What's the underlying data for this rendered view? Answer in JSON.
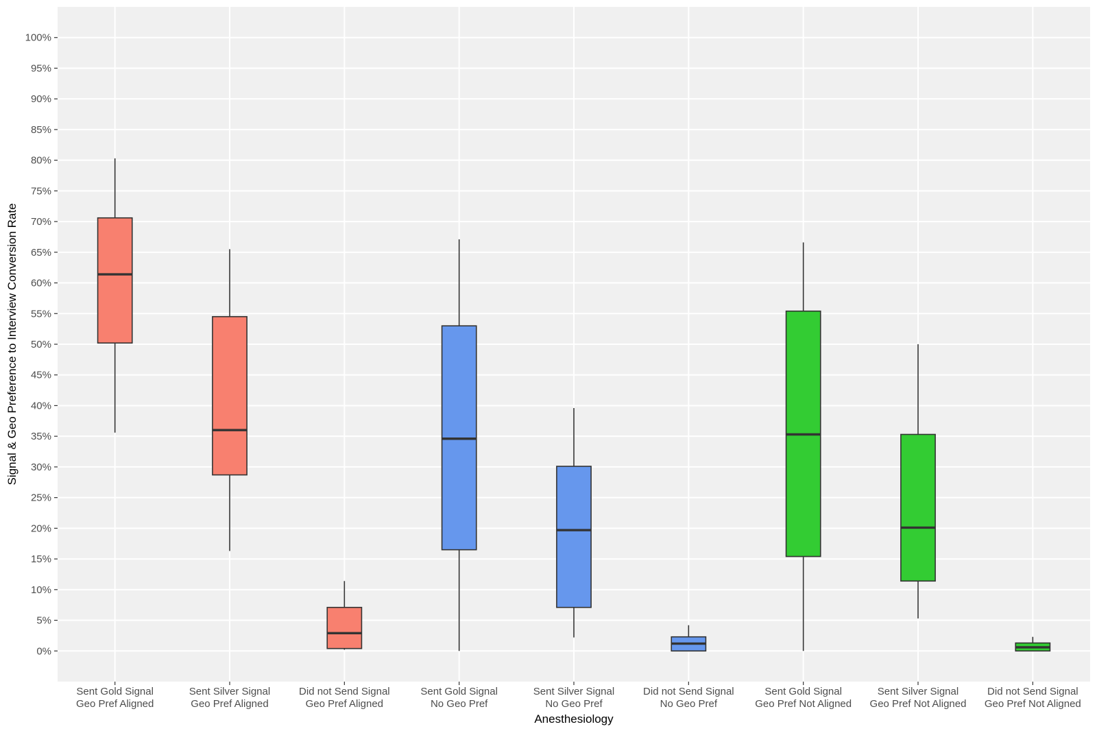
{
  "chart_data": {
    "type": "boxplot",
    "title": "",
    "xlabel": "Anesthesiology",
    "ylabel": "Signal & Geo Preference to Interview Conversion Rate",
    "ylim": [
      -0.05,
      1.05
    ],
    "y_ticks": [
      0,
      0.05,
      0.1,
      0.15,
      0.2,
      0.25,
      0.3,
      0.35,
      0.4,
      0.45,
      0.5,
      0.55,
      0.6,
      0.65,
      0.7,
      0.75,
      0.8,
      0.85,
      0.9,
      0.95,
      1.0
    ],
    "y_tick_labels": [
      "0%",
      "5%",
      "10%",
      "15%",
      "20%",
      "25%",
      "30%",
      "35%",
      "40%",
      "45%",
      "50%",
      "55%",
      "60%",
      "65%",
      "70%",
      "75%",
      "80%",
      "85%",
      "90%",
      "95%",
      "100%"
    ],
    "grid": true,
    "legend": "none",
    "categories": [
      {
        "line1": "Sent Gold Signal",
        "line2": "Geo Pref Aligned"
      },
      {
        "line1": "Sent Silver Signal",
        "line2": "Geo Pref Aligned"
      },
      {
        "line1": "Did not Send Signal",
        "line2": "Geo Pref Aligned"
      },
      {
        "line1": "Sent Gold Signal",
        "line2": "No Geo Pref"
      },
      {
        "line1": "Sent Silver Signal",
        "line2": "No Geo Pref"
      },
      {
        "line1": "Did not Send Signal",
        "line2": "No Geo Pref"
      },
      {
        "line1": "Sent Gold Signal",
        "line2": "Geo Pref Not Aligned"
      },
      {
        "line1": "Sent Silver Signal",
        "line2": "Geo Pref Not Aligned"
      },
      {
        "line1": "Did not Send Signal",
        "line2": "Geo Pref Not Aligned"
      }
    ],
    "boxes": [
      {
        "min": 0.356,
        "q1": 0.502,
        "median": 0.614,
        "q3": 0.706,
        "max": 0.803,
        "color": "#f8806f"
      },
      {
        "min": 0.163,
        "q1": 0.287,
        "median": 0.36,
        "q3": 0.545,
        "max": 0.655,
        "color": "#f8806f"
      },
      {
        "min": 0.002,
        "q1": 0.004,
        "median": 0.029,
        "q3": 0.071,
        "max": 0.114,
        "color": "#f8806f"
      },
      {
        "min": 0.0,
        "q1": 0.165,
        "median": 0.346,
        "q3": 0.53,
        "max": 0.671,
        "color": "#6697ed"
      },
      {
        "min": 0.022,
        "q1": 0.071,
        "median": 0.197,
        "q3": 0.301,
        "max": 0.396,
        "color": "#6697ed"
      },
      {
        "min": 0.0,
        "q1": 0.0,
        "median": 0.012,
        "q3": 0.023,
        "max": 0.042,
        "color": "#6697ed"
      },
      {
        "min": 0.0,
        "q1": 0.154,
        "median": 0.353,
        "q3": 0.554,
        "max": 0.666,
        "color": "#33cc33"
      },
      {
        "min": 0.053,
        "q1": 0.114,
        "median": 0.201,
        "q3": 0.353,
        "max": 0.5,
        "color": "#33cc33"
      },
      {
        "min": 0.0,
        "q1": 0.0,
        "median": 0.006,
        "q3": 0.013,
        "max": 0.023,
        "color": "#33cc33"
      }
    ],
    "colors": {
      "panel_background": "#f0f0f0",
      "grid": "#ffffff",
      "box_outline": "#333333"
    }
  }
}
